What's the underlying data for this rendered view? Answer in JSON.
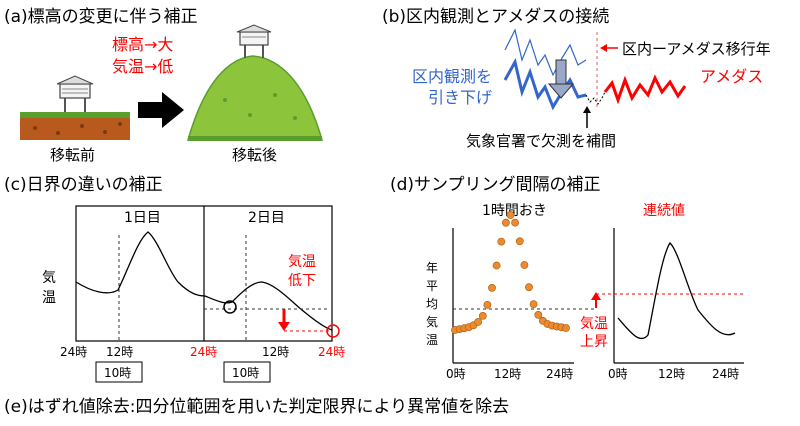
{
  "panel_a": {
    "title": "(a)標高の変更に伴う補正",
    "red_line1": "標高→大",
    "red_line2": "気温→低",
    "label_before": "移転前",
    "label_after": "移転後"
  },
  "panel_b": {
    "title": "(b)区内観測とアメダスの接続",
    "transition_label": "区内ーアメダス移行年",
    "amedas_label": "アメダス",
    "kunai_line1": "区内観測を",
    "kunai_line2": "引き下げ",
    "missing_label": "気象官署で欠測を補間"
  },
  "panel_c": {
    "title": "(c)日界の違いの補正",
    "day1": "1日目",
    "day2": "2日目",
    "ylabel_1": "気",
    "ylabel_2": "温",
    "temp_drop_1": "気温",
    "temp_drop_2": "低下",
    "ticks": [
      "24時",
      "12時",
      "24時",
      "12時",
      "24時"
    ],
    "box1": "10時",
    "box2": "10時"
  },
  "panel_d": {
    "title": "(d)サンプリング間隔の補正",
    "hourly_label": "1時間おき",
    "continuous_label": "連続値",
    "ylabel": [
      "年",
      "平",
      "均",
      "気",
      "温"
    ],
    "rise_1": "気温",
    "rise_2": "上昇",
    "ticks_left": [
      "0時",
      "12時",
      "24時"
    ],
    "ticks_right": [
      "0時",
      "12時",
      "24時"
    ]
  },
  "panel_e": {
    "text": "(e)はずれ値除去:四分位範囲を用いた判定限界により異常値を除去"
  },
  "colors": {
    "red": "#ff0000",
    "blue": "#3366cc",
    "orange": "#ee8a2e",
    "soil": "#b85a1e",
    "grass": "#5a9e2e",
    "hill": "#8cc43c"
  }
}
